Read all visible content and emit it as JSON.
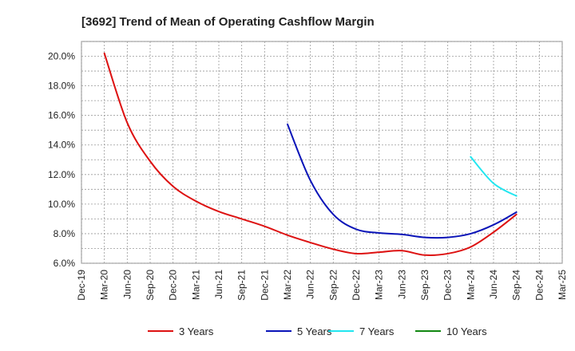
{
  "chart_data": {
    "type": "line",
    "title": "[3692]  Trend of Mean of Operating Cashflow Margin",
    "xlabel": "",
    "ylabel": "",
    "x_ticks": [
      "Dec-19",
      "Mar-20",
      "Jun-20",
      "Sep-20",
      "Dec-20",
      "Mar-21",
      "Jun-21",
      "Sep-21",
      "Dec-21",
      "Mar-22",
      "Jun-22",
      "Sep-22",
      "Dec-22",
      "Mar-23",
      "Jun-23",
      "Sep-23",
      "Dec-23",
      "Mar-24",
      "Jun-24",
      "Sep-24",
      "Dec-24",
      "Mar-25"
    ],
    "y_ticks": [
      "6.0%",
      "8.0%",
      "10.0%",
      "12.0%",
      "14.0%",
      "16.0%",
      "18.0%",
      "20.0%"
    ],
    "ylim": [
      6.0,
      21.0
    ],
    "y_unit": "%",
    "grid": true,
    "legend_position": "bottom",
    "series": [
      {
        "name": "3 Years",
        "color": "#dd1111",
        "points": [
          [
            "Mar-20",
            20.2
          ],
          [
            "Jun-20",
            15.5
          ],
          [
            "Sep-20",
            12.9
          ],
          [
            "Dec-20",
            11.2
          ],
          [
            "Mar-21",
            10.2
          ],
          [
            "Jun-21",
            9.5
          ],
          [
            "Sep-21",
            9.0
          ],
          [
            "Dec-21",
            8.5
          ],
          [
            "Mar-22",
            7.9
          ],
          [
            "Jun-22",
            7.4
          ],
          [
            "Sep-22",
            6.95
          ],
          [
            "Dec-22",
            6.65
          ],
          [
            "Mar-23",
            6.75
          ],
          [
            "Jun-23",
            6.85
          ],
          [
            "Sep-23",
            6.55
          ],
          [
            "Dec-23",
            6.65
          ],
          [
            "Mar-24",
            7.1
          ],
          [
            "Jun-24",
            8.1
          ],
          [
            "Sep-24",
            9.3
          ]
        ]
      },
      {
        "name": "5 Years",
        "color": "#0a14b8",
        "points": [
          [
            "Mar-22",
            15.4
          ],
          [
            "Jun-22",
            11.6
          ],
          [
            "Sep-22",
            9.3
          ],
          [
            "Dec-22",
            8.3
          ],
          [
            "Mar-23",
            8.05
          ],
          [
            "Jun-23",
            7.95
          ],
          [
            "Sep-23",
            7.75
          ],
          [
            "Dec-23",
            7.75
          ],
          [
            "Mar-24",
            8.0
          ],
          [
            "Jun-24",
            8.6
          ],
          [
            "Sep-24",
            9.45
          ]
        ]
      },
      {
        "name": "7 Years",
        "color": "#22e6f0",
        "points": [
          [
            "Mar-24",
            13.2
          ],
          [
            "Jun-24",
            11.4
          ],
          [
            "Sep-24",
            10.55
          ]
        ]
      },
      {
        "name": "10 Years",
        "color": "#118811",
        "points": []
      }
    ]
  }
}
